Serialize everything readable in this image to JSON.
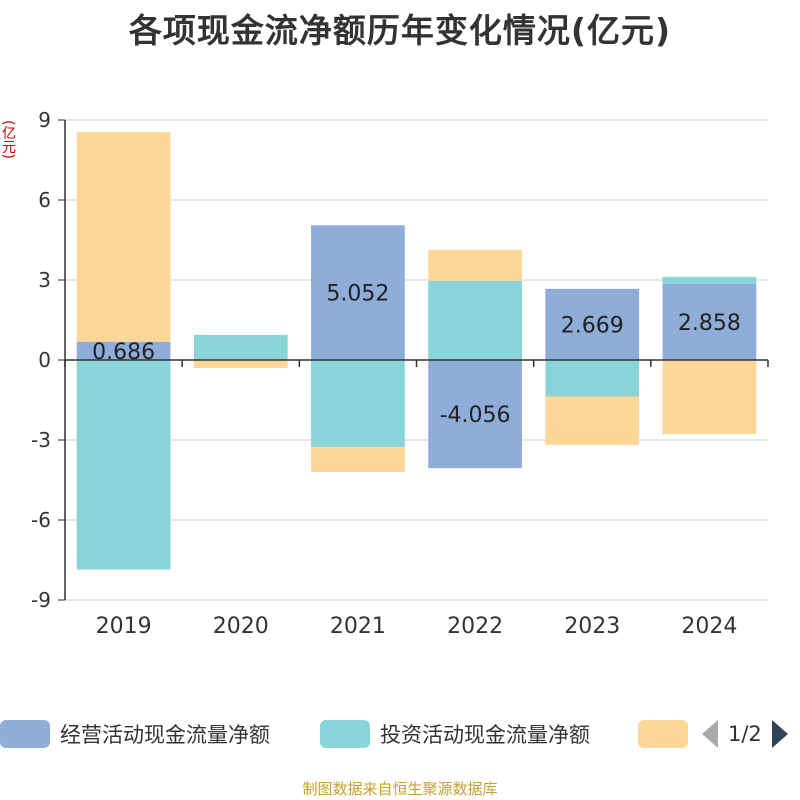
{
  "colors": {
    "operating": "#8eadd9",
    "investing": "#88d4d8",
    "financing": "#fdd798",
    "axis": "#333333",
    "grid": "#cccccc",
    "unit": "#cc0000",
    "source": "#c8a030"
  },
  "unit_label": "(亿元)",
  "legend": {
    "items": [
      "经营活动现金流量净额",
      "投资活动现金流量净额",
      ""
    ],
    "page_text": "1/2"
  },
  "source_text": "制图数据来自恒生聚源数据库",
  "chart_data": {
    "type": "bar",
    "stacked": true,
    "title": "各项现金流净额历年变化情况(亿元)",
    "ylabel": "(亿元)",
    "categories": [
      "2019",
      "2020",
      "2021",
      "2022",
      "2023",
      "2024"
    ],
    "ylim": [
      -9,
      9
    ],
    "yticks": [
      -9,
      -6,
      -3,
      0,
      3,
      6,
      9
    ],
    "grid": true,
    "legend_position": "bottom",
    "series": [
      {
        "name": "经营活动现金流量净额",
        "values": [
          0.686,
          0.02,
          5.052,
          -4.056,
          2.669,
          2.858
        ]
      },
      {
        "name": "投资活动现金流量净额",
        "values": [
          -7.86,
          0.92,
          -3.26,
          2.97,
          -1.37,
          0.26
        ]
      },
      {
        "name": "",
        "values": [
          7.86,
          -0.3,
          -0.94,
          1.16,
          -1.81,
          -2.78
        ]
      }
    ],
    "data_labels": [
      "0.686",
      "",
      "5.052",
      "-4.056",
      "2.669",
      "2.858"
    ]
  }
}
